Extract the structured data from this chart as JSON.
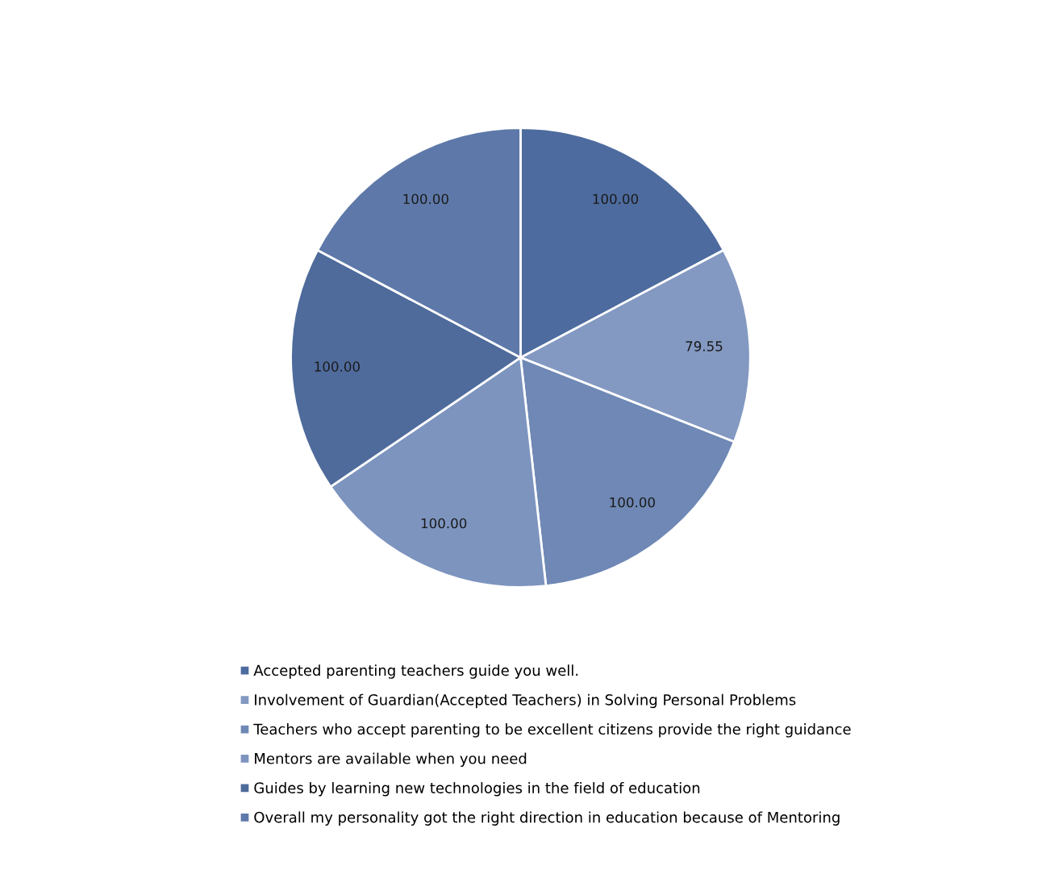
{
  "chart_data": {
    "type": "pie",
    "categories": [
      "Accepted parenting teachers guide you well.",
      "Involvement of Guardian(Accepted Teachers) in Solving Personal Problems",
      "Teachers who accept parenting to be excellent citizens provide the right guidance",
      "Mentors are available when you need",
      "Guides by learning new technologies in the field of education",
      "Overall my personality got the right direction in education because of Mentoring"
    ],
    "values": [
      100.0,
      79.55,
      100.0,
      100.0,
      100.0,
      100.0
    ],
    "value_labels": [
      "100.00",
      "79.55",
      "100.00",
      "100.00",
      "100.00",
      "100.00"
    ],
    "colors": [
      "#4d6b9e",
      "#8399c2",
      "#6f88b5",
      "#7d94bf",
      "#4f6b9c",
      "#5e79a9"
    ],
    "legend": "bottom"
  }
}
